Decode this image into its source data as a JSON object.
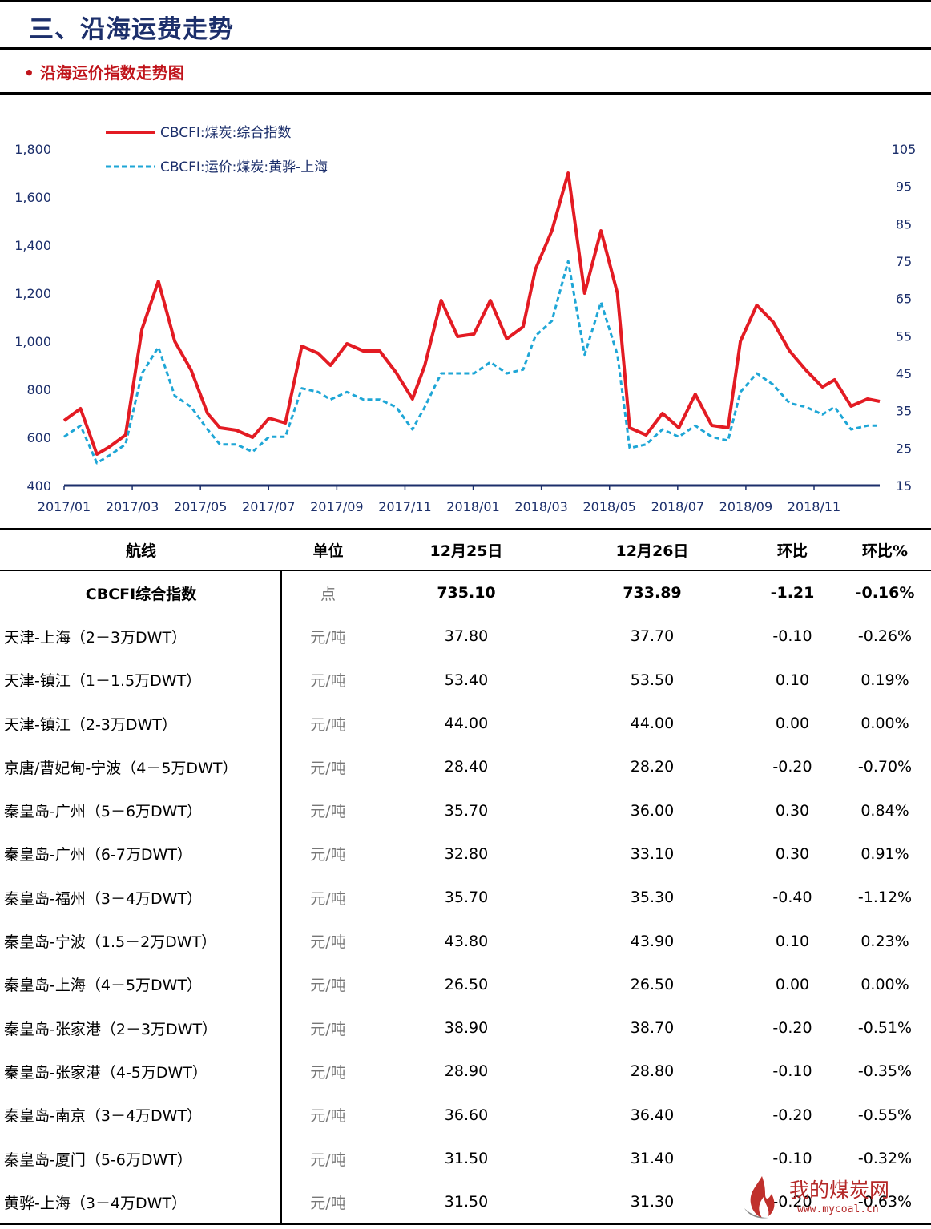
{
  "header": {
    "title": "三、沿海运费走势"
  },
  "subheader": {
    "title": "• 沿海运价指数走势图"
  },
  "chart_data": {
    "type": "line",
    "legend_placement": "top-left",
    "grid": false,
    "x_labels": [
      "2017/01",
      "2017/03",
      "2017/05",
      "2017/07",
      "2017/09",
      "2017/11",
      "2018/01",
      "2018/03",
      "2018/05",
      "2018/07",
      "2018/09",
      "2018/11"
    ],
    "y_left": {
      "ticks": [
        "1,800",
        "1,600",
        "1,400",
        "1,200",
        "1,000",
        "800",
        "600",
        "400"
      ],
      "range": [
        400,
        1800
      ]
    },
    "y_right": {
      "ticks": [
        "105",
        "95",
        "85",
        "75",
        "65",
        "55",
        "45",
        "35",
        "25",
        "15"
      ],
      "range": [
        15,
        105
      ]
    },
    "series": [
      {
        "name": "CBCFI:煤炭:综合指数",
        "axis": "left",
        "color": "#e31b23",
        "style": "solid",
        "x": [
          2017.0,
          2017.04,
          2017.08,
          2017.11,
          2017.15,
          2017.19,
          2017.23,
          2017.27,
          2017.31,
          2017.35,
          2017.38,
          2017.42,
          2017.46,
          2017.5,
          2017.54,
          2017.58,
          2017.62,
          2017.65,
          2017.69,
          2017.73,
          2017.77,
          2017.81,
          2017.85,
          2017.88,
          2017.92,
          2017.96,
          2018.0,
          2018.04,
          2018.08,
          2018.12,
          2018.15,
          2018.19,
          2018.23,
          2018.27,
          2018.31,
          2018.35,
          2018.38,
          2018.42,
          2018.46,
          2018.5,
          2018.54,
          2018.58,
          2018.62,
          2018.65,
          2018.69,
          2018.73,
          2018.77,
          2018.81,
          2018.85,
          2018.88,
          2018.92,
          2018.96,
          2018.99
        ],
        "y": [
          670,
          720,
          530,
          560,
          610,
          1050,
          1250,
          1000,
          880,
          700,
          640,
          630,
          600,
          680,
          660,
          980,
          950,
          900,
          990,
          960,
          960,
          870,
          760,
          900,
          1170,
          1020,
          1030,
          1170,
          1010,
          1060,
          1300,
          1460,
          1700,
          1200,
          1460,
          1200,
          640,
          610,
          700,
          640,
          780,
          650,
          640,
          1000,
          1150,
          1080,
          960,
          880,
          810,
          840,
          730,
          760,
          750
        ]
      },
      {
        "name": "CBCFI:运价:煤炭:黄骅-上海",
        "axis": "right",
        "color": "#1ea6d6",
        "style": "dashed",
        "x": [
          2017.0,
          2017.04,
          2017.08,
          2017.11,
          2017.15,
          2017.19,
          2017.23,
          2017.27,
          2017.31,
          2017.35,
          2017.38,
          2017.42,
          2017.46,
          2017.5,
          2017.54,
          2017.58,
          2017.62,
          2017.65,
          2017.69,
          2017.73,
          2017.77,
          2017.81,
          2017.85,
          2017.88,
          2017.92,
          2017.96,
          2018.0,
          2018.04,
          2018.08,
          2018.12,
          2018.15,
          2018.19,
          2018.23,
          2018.27,
          2018.31,
          2018.35,
          2018.38,
          2018.42,
          2018.46,
          2018.5,
          2018.54,
          2018.58,
          2018.62,
          2018.65,
          2018.69,
          2018.73,
          2018.77,
          2018.81,
          2018.85,
          2018.88,
          2018.92,
          2018.96,
          2018.99
        ],
        "y": [
          28,
          31,
          21,
          23,
          26,
          45,
          52,
          39,
          36,
          30,
          26,
          26,
          24,
          28,
          28,
          41,
          40,
          38,
          40,
          38,
          38,
          36,
          30,
          36,
          45,
          45,
          45,
          48,
          45,
          46,
          55,
          59,
          75,
          50,
          64,
          50,
          25,
          26,
          30,
          28,
          31,
          28,
          27,
          40,
          45,
          42,
          37,
          36,
          34,
          36,
          30,
          31,
          31
        ]
      }
    ]
  },
  "table": {
    "headers": [
      "航线",
      "单位",
      "12月25日",
      "12月26日",
      "环比",
      "环比%"
    ],
    "rows": [
      [
        "CBCFI综合指数",
        "点",
        "735.10",
        "733.89",
        "-1.21",
        "-0.16%"
      ],
      [
        "天津-上海（2－3万DWT）",
        "元/吨",
        "37.80",
        "37.70",
        "-0.10",
        "-0.26%"
      ],
      [
        "天津-镇江（1－1.5万DWT）",
        "元/吨",
        "53.40",
        "53.50",
        "0.10",
        "0.19%"
      ],
      [
        "天津-镇江（2-3万DWT）",
        "元/吨",
        "44.00",
        "44.00",
        "0.00",
        "0.00%"
      ],
      [
        "京唐/曹妃甸-宁波（4－5万DWT）",
        "元/吨",
        "28.40",
        "28.20",
        "-0.20",
        "-0.70%"
      ],
      [
        "秦皇岛-广州（5－6万DWT）",
        "元/吨",
        "35.70",
        "36.00",
        "0.30",
        "0.84%"
      ],
      [
        "秦皇岛-广州（6-7万DWT）",
        "元/吨",
        "32.80",
        "33.10",
        "0.30",
        "0.91%"
      ],
      [
        "秦皇岛-福州（3－4万DWT）",
        "元/吨",
        "35.70",
        "35.30",
        "-0.40",
        "-1.12%"
      ],
      [
        "秦皇岛-宁波（1.5－2万DWT）",
        "元/吨",
        "43.80",
        "43.90",
        "0.10",
        "0.23%"
      ],
      [
        "秦皇岛-上海（4－5万DWT）",
        "元/吨",
        "26.50",
        "26.50",
        "0.00",
        "0.00%"
      ],
      [
        "秦皇岛-张家港（2－3万DWT）",
        "元/吨",
        "38.90",
        "38.70",
        "-0.20",
        "-0.51%"
      ],
      [
        "秦皇岛-张家港（4-5万DWT）",
        "元/吨",
        "28.90",
        "28.80",
        "-0.10",
        "-0.35%"
      ],
      [
        "秦皇岛-南京（3－4万DWT）",
        "元/吨",
        "36.60",
        "36.40",
        "-0.20",
        "-0.55%"
      ],
      [
        "秦皇岛-厦门（5-6万DWT）",
        "元/吨",
        "31.50",
        "31.40",
        "-0.10",
        "-0.32%"
      ],
      [
        "黄骅-上海（3－4万DWT）",
        "元/吨",
        "31.50",
        "31.30",
        "-0.20",
        "-0.63%"
      ]
    ]
  },
  "watermark": {
    "text": "我的煤炭网",
    "url": "www.mycoal.cn"
  }
}
